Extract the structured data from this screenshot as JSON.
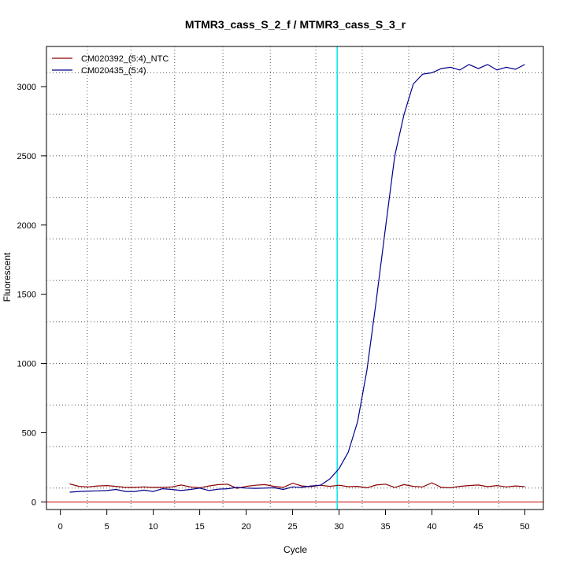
{
  "chart_data": {
    "type": "line",
    "title": "MTMR3_cass_S_2_f / MTMR3_cass_S_3_r",
    "xlabel": "Cycle",
    "ylabel": "Fluorescent",
    "xlim": [
      -1.5,
      52
    ],
    "ylim": [
      -55,
      3290
    ],
    "xticks": [
      0,
      5,
      10,
      15,
      20,
      25,
      30,
      35,
      40,
      45,
      50
    ],
    "yticks": [
      0,
      500,
      1000,
      1500,
      2000,
      2500,
      3000
    ],
    "x_grid": [
      2.9,
      7.6,
      12.3,
      17.5,
      22.6,
      27.5,
      32.5,
      37.5,
      42.3,
      47.2
    ],
    "y_grid": [
      100,
      400,
      700,
      1000,
      1300,
      1600,
      1900,
      2200,
      2500,
      2800,
      3100
    ],
    "threshold_cycle": 29.8,
    "baseline": 0,
    "legend_position": "top-left",
    "x": [
      1,
      2,
      3,
      4,
      5,
      6,
      7,
      8,
      9,
      10,
      11,
      12,
      13,
      14,
      15,
      16,
      17,
      18,
      19,
      20,
      21,
      22,
      23,
      24,
      25,
      26,
      27,
      28,
      29,
      30,
      31,
      32,
      33,
      34,
      35,
      36,
      37,
      38,
      39,
      40,
      41,
      42,
      43,
      44,
      45,
      46,
      47,
      48,
      49,
      50
    ],
    "series": [
      {
        "name": "CM020392_(5:4)_NTC",
        "color": "#8b0000",
        "values": [
          130,
          112,
          108,
          115,
          118,
          112,
          105,
          105,
          108,
          105,
          105,
          108,
          122,
          108,
          102,
          115,
          125,
          128,
          98,
          112,
          120,
          125,
          112,
          105,
          135,
          115,
          110,
          120,
          112,
          120,
          110,
          112,
          102,
          122,
          128,
          105,
          125,
          112,
          108,
          138,
          105,
          102,
          112,
          118,
          122,
          110,
          118,
          108,
          115,
          110
        ]
      },
      {
        "name": "CM020435_(5:4)",
        "color": "#00008b",
        "values": [
          70,
          75,
          78,
          80,
          82,
          90,
          75,
          75,
          85,
          75,
          95,
          90,
          82,
          90,
          100,
          82,
          92,
          95,
          105,
          100,
          98,
          100,
          102,
          90,
          108,
          105,
          115,
          120,
          165,
          240,
          360,
          580,
          950,
          1450,
          1980,
          2500,
          2800,
          3020,
          3090,
          3100,
          3130,
          3140,
          3120,
          3160,
          3130,
          3160,
          3120,
          3140,
          3125,
          3160
        ]
      }
    ]
  },
  "colors": {
    "threshold": "#00e5ee",
    "baseline": "#cc0000",
    "grid": "#555555"
  }
}
